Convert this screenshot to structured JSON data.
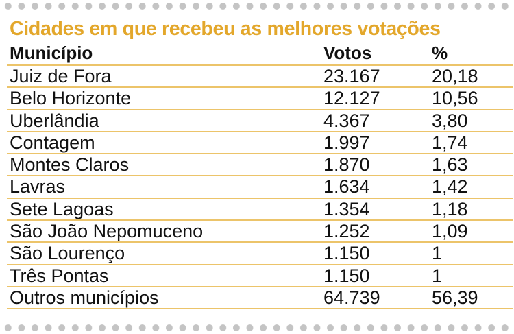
{
  "title": "Cidades em que recebeu as melhores votações",
  "table": {
    "header": [
      "Município",
      "Votos",
      "%"
    ],
    "rows": [
      [
        "Juiz de Fora",
        "23.167",
        "20,18"
      ],
      [
        "Belo Horizonte",
        "12.127",
        "10,56"
      ],
      [
        "Uberlândia",
        "4.367",
        "3,80"
      ],
      [
        "Contagem",
        "1.997",
        "1,74"
      ],
      [
        "Montes Claros",
        "1.870",
        "1,63"
      ],
      [
        "Lavras",
        "1.634",
        "1,42"
      ],
      [
        "Sete Lagoas",
        "1.354",
        "1,18"
      ],
      [
        "São João Nepomuceno",
        "1.252",
        "1,09"
      ],
      [
        "São Lourenço",
        "1.150",
        "1"
      ],
      [
        "Três Pontas",
        "1.150",
        "1"
      ],
      [
        "Outros municípios",
        "64.739",
        "56,39"
      ]
    ]
  }
}
